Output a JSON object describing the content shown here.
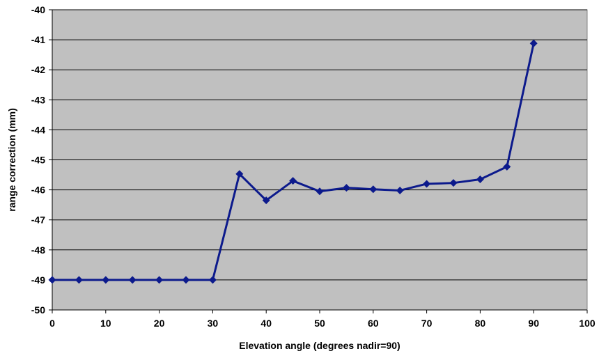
{
  "chart_data": {
    "type": "line",
    "title": "",
    "xlabel": "Elevation angle (degrees nadir=90)",
    "ylabel": "range correction (mm)",
    "xlim": [
      0,
      100
    ],
    "ylim": [
      -50,
      -40
    ],
    "xticks": [
      0,
      10,
      20,
      30,
      40,
      50,
      60,
      70,
      80,
      90,
      100
    ],
    "yticks": [
      -40,
      -41,
      -42,
      -43,
      -44,
      -45,
      -46,
      -47,
      -48,
      -49,
      -50
    ],
    "grid": "horizontal",
    "legend": "none",
    "colors": {
      "plot_background": "#c0c0c0",
      "series": "#0c1a8c",
      "gridline": "#000000"
    },
    "series": [
      {
        "marker": "diamond",
        "x": [
          0,
          5,
          10,
          15,
          20,
          25,
          30,
          35,
          40,
          45,
          50,
          55,
          60,
          65,
          70,
          75,
          80,
          85,
          90
        ],
        "y": [
          -49,
          -49,
          -49,
          -49,
          -49,
          -49,
          -49,
          -45.47,
          -46.35,
          -45.7,
          -46.05,
          -45.93,
          -45.98,
          -46.02,
          -45.8,
          -45.77,
          -45.65,
          -45.23,
          -41.12
        ]
      }
    ]
  }
}
